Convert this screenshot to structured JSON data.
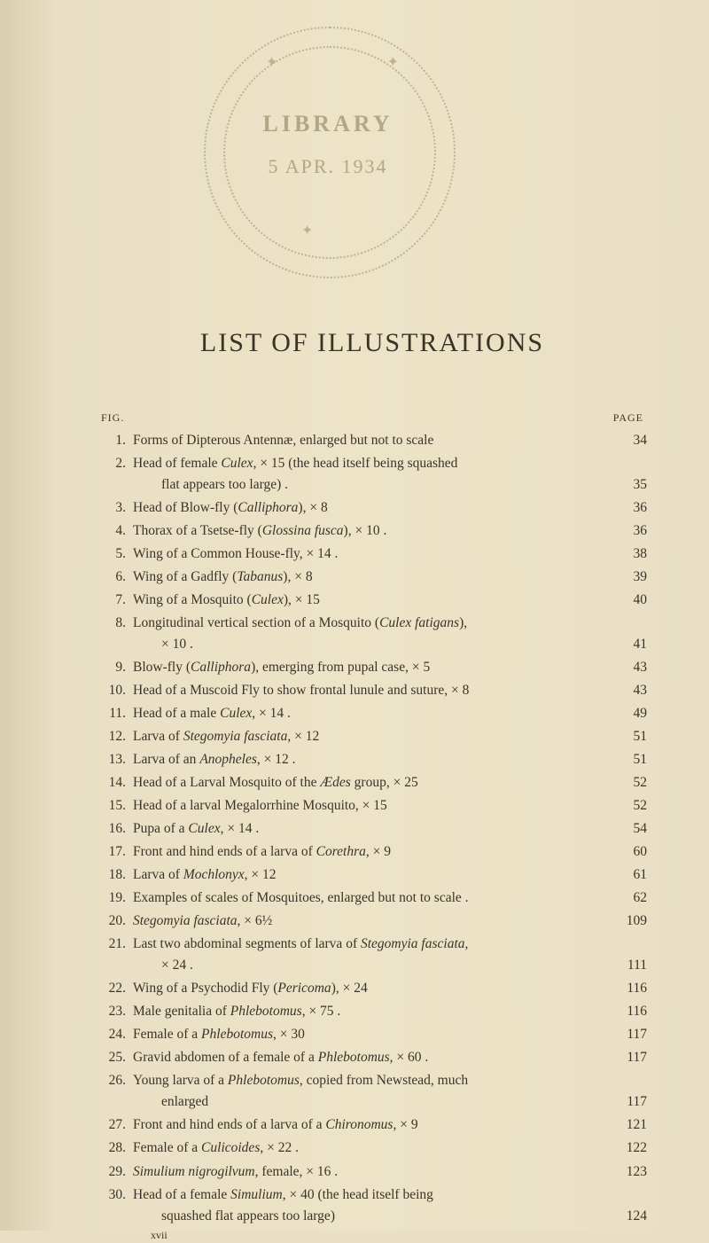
{
  "stamp": {
    "library": "LIBRARY",
    "date": "5 APR. 1934"
  },
  "title": "LIST OF ILLUSTRATIONS",
  "header": {
    "left": "FIG.",
    "right": "PAGE"
  },
  "footer_sig": "xvii",
  "entries": [
    {
      "n": "1.",
      "lines": [
        "Forms of Dipterous Antennæ, enlarged but not to scale"
      ],
      "page": "34"
    },
    {
      "n": "2.",
      "lines": [
        "Head of female <em class='taxon'>Culex</em>, × 15 (the head itself being squashed",
        "flat appears too large) ."
      ],
      "page": "35"
    },
    {
      "n": "3.",
      "lines": [
        "Head of Blow-fly (<em class='taxon'>Calliphora</em>), × 8"
      ],
      "page": "36"
    },
    {
      "n": "4.",
      "lines": [
        "Thorax of a Tsetse-fly (<em class='taxon'>Glossina fusca</em>), × 10 ."
      ],
      "page": "36"
    },
    {
      "n": "5.",
      "lines": [
        "Wing of a Common House-fly, × 14 ."
      ],
      "page": "38"
    },
    {
      "n": "6.",
      "lines": [
        "Wing of a Gadfly (<em class='taxon'>Tabanus</em>), × 8"
      ],
      "page": "39"
    },
    {
      "n": "7.",
      "lines": [
        "Wing of a Mosquito (<em class='taxon'>Culex</em>), × 15"
      ],
      "page": "40"
    },
    {
      "n": "8.",
      "lines": [
        "Longitudinal vertical section of a Mosquito (<em class='taxon'>Culex fatigans</em>),",
        "× 10 ."
      ],
      "page": "41"
    },
    {
      "n": "9.",
      "lines": [
        "Blow-fly (<em class='taxon'>Calliphora</em>), emerging from pupal case, × 5"
      ],
      "page": "43"
    },
    {
      "n": "10.",
      "lines": [
        "Head of a Muscoid Fly to show frontal lunule and suture, × 8"
      ],
      "page": "43"
    },
    {
      "n": "11.",
      "lines": [
        "Head of a male <em class='taxon'>Culex</em>, × 14 ."
      ],
      "page": "49"
    },
    {
      "n": "12.",
      "lines": [
        "Larva of <em class='taxon'>Stegomyia fasciata</em>, × 12"
      ],
      "page": "51"
    },
    {
      "n": "13.",
      "lines": [
        "Larva of an <em class='taxon'>Anopheles</em>, × 12 ."
      ],
      "page": "51"
    },
    {
      "n": "14.",
      "lines": [
        "Head of a Larval Mosquito of the <em class='taxon'>Ædes</em> group, × 25"
      ],
      "page": "52"
    },
    {
      "n": "15.",
      "lines": [
        "Head of a larval Megalorrhine Mosquito, × 15"
      ],
      "page": "52"
    },
    {
      "n": "16.",
      "lines": [
        "Pupa of a <em class='taxon'>Culex</em>, × 14 ."
      ],
      "page": "54"
    },
    {
      "n": "17.",
      "lines": [
        "Front and hind ends of a larva of <em class='taxon'>Corethra</em>, × 9"
      ],
      "page": "60"
    },
    {
      "n": "18.",
      "lines": [
        "Larva of <em class='taxon'>Mochlonyx</em>, × 12"
      ],
      "page": "61"
    },
    {
      "n": "19.",
      "lines": [
        "Examples of scales of Mosquitoes, enlarged but not to scale ."
      ],
      "page": "62"
    },
    {
      "n": "20.",
      "lines": [
        "<em class='taxon'>Stegomyia fasciata</em>, × 6½"
      ],
      "page": "109"
    },
    {
      "n": "21.",
      "lines": [
        "Last two abdominal segments of larva of <em class='taxon'>Stegomyia fasciata</em>,",
        "× 24 ."
      ],
      "page": "111"
    },
    {
      "n": "22.",
      "lines": [
        "Wing of a Psychodid Fly (<em class='taxon'>Pericoma</em>), × 24"
      ],
      "page": "116"
    },
    {
      "n": "23.",
      "lines": [
        "Male genitalia of <em class='taxon'>Phlebotomus</em>, × 75 ."
      ],
      "page": "116"
    },
    {
      "n": "24.",
      "lines": [
        "Female of a <em class='taxon'>Phlebotomus</em>, × 30"
      ],
      "page": "117"
    },
    {
      "n": "25.",
      "lines": [
        "Gravid abdomen of a female of a <em class='taxon'>Phlebotomus</em>, × 60 ."
      ],
      "page": "117"
    },
    {
      "n": "26.",
      "lines": [
        "Young larva of a <em class='taxon'>Phlebotomus</em>, copied from Newstead, much",
        "enlarged"
      ],
      "page": "117"
    },
    {
      "n": "27.",
      "lines": [
        "Front and hind ends of a larva of a <em class='taxon'>Chironomus</em>, × 9"
      ],
      "page": "121"
    },
    {
      "n": "28.",
      "lines": [
        "Female of a <em class='taxon'>Culicoides</em>, × 22 ."
      ],
      "page": "122"
    },
    {
      "n": "29.",
      "lines": [
        "<em class='taxon'>Simulium nigrogilvum</em>, female, × 16 ."
      ],
      "page": "123"
    },
    {
      "n": "30.",
      "lines": [
        "Head of a female <em class='taxon'>Simulium</em>, × 40 (the head itself being",
        "squashed flat appears too large)"
      ],
      "page": "124"
    }
  ]
}
